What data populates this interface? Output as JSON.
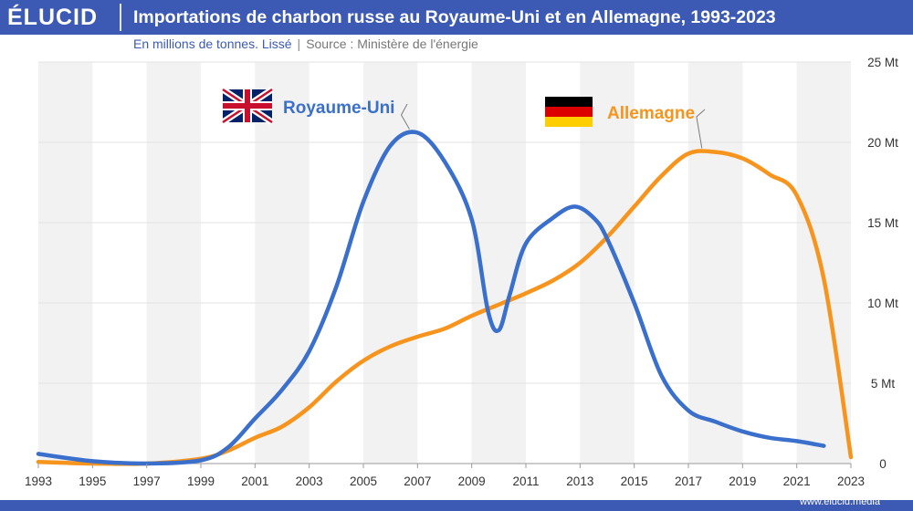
{
  "header": {
    "logo": "ÉLUCID",
    "title": "Importations de charbon russe au Royaume-Uni et en Allemagne, 1993-2023",
    "subtitle": "En millions de tonnes. Lissé",
    "separator": "|",
    "source": "Source : Ministère de l'énergie"
  },
  "footer": {
    "url": "www.elucid.media"
  },
  "colors": {
    "brand": "#3c5ab3",
    "uk": "#3a6fcc",
    "germany": "#f7941d",
    "band": "#f2f2f2",
    "grid": "#e3e3e3"
  },
  "chart_data": {
    "type": "line",
    "x_ticks": [
      "1993",
      "1995",
      "1997",
      "1999",
      "2001",
      "2003",
      "2005",
      "2007",
      "2009",
      "2011",
      "2013",
      "2015",
      "2017",
      "2019",
      "2021",
      "2023"
    ],
    "y_ticks": [
      "0",
      "5 Mt",
      "10 Mt",
      "15 Mt",
      "20 Mt",
      "25 Mt"
    ],
    "xlim": [
      1993,
      2023
    ],
    "ylim": [
      0,
      25
    ],
    "grid": true,
    "alternating_bands": true,
    "series": [
      {
        "name": "Royaume-Uni",
        "color": "#3a6fcc",
        "flag": "uk-flag",
        "points": [
          [
            1993,
            0.6
          ],
          [
            1995,
            0.15
          ],
          [
            1997,
            0.0
          ],
          [
            1999,
            0.2
          ],
          [
            2000,
            1.0
          ],
          [
            2001,
            2.8
          ],
          [
            2002,
            4.6
          ],
          [
            2003,
            7.0
          ],
          [
            2004,
            11.0
          ],
          [
            2005,
            16.3
          ],
          [
            2006,
            19.8
          ],
          [
            2007,
            20.6
          ],
          [
            2008,
            18.8
          ],
          [
            2009,
            15.2
          ],
          [
            2009.6,
            9.5
          ],
          [
            2010,
            8.3
          ],
          [
            2010.4,
            10.5
          ],
          [
            2011,
            13.7
          ],
          [
            2012,
            15.3
          ],
          [
            2012.8,
            16.0
          ],
          [
            2013.5,
            15.3
          ],
          [
            2014,
            14.0
          ],
          [
            2015,
            10.0
          ],
          [
            2016,
            5.5
          ],
          [
            2017,
            3.3
          ],
          [
            2018,
            2.6
          ],
          [
            2019,
            2.0
          ],
          [
            2020,
            1.6
          ],
          [
            2021,
            1.4
          ],
          [
            2022,
            1.1
          ]
        ]
      },
      {
        "name": "Allemagne",
        "color": "#f7941d",
        "flag": "germany-flag",
        "points": [
          [
            1993,
            0.1
          ],
          [
            1995,
            0.0
          ],
          [
            1997,
            0.0
          ],
          [
            1999,
            0.3
          ],
          [
            2000,
            0.8
          ],
          [
            2001,
            1.6
          ],
          [
            2002,
            2.3
          ],
          [
            2003,
            3.5
          ],
          [
            2004,
            5.1
          ],
          [
            2005,
            6.4
          ],
          [
            2006,
            7.3
          ],
          [
            2007,
            7.9
          ],
          [
            2008,
            8.4
          ],
          [
            2009,
            9.2
          ],
          [
            2010,
            9.9
          ],
          [
            2011,
            10.6
          ],
          [
            2012,
            11.4
          ],
          [
            2013,
            12.5
          ],
          [
            2014,
            14.1
          ],
          [
            2015,
            16.0
          ],
          [
            2016,
            17.9
          ],
          [
            2017,
            19.3
          ],
          [
            2018,
            19.4
          ],
          [
            2019,
            19.0
          ],
          [
            2020,
            18.0
          ],
          [
            2021,
            16.7
          ],
          [
            2022,
            11.5
          ],
          [
            2023,
            0.4
          ]
        ]
      }
    ],
    "labels": [
      {
        "text": "Royaume-Uni",
        "series": 0
      },
      {
        "text": "Allemagne",
        "series": 1
      }
    ]
  }
}
